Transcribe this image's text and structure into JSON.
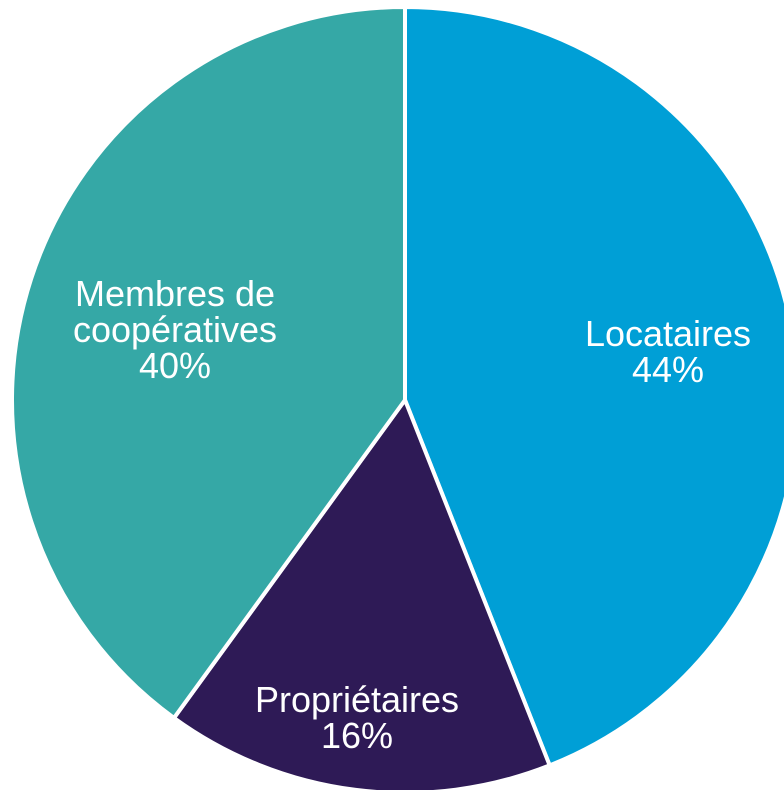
{
  "chart_data": {
    "type": "pie",
    "categories": [
      "Locataires",
      "Propriétaires",
      "Membres de coopératives"
    ],
    "values": [
      44,
      16,
      40
    ],
    "value_labels": [
      "44%",
      "16%",
      "40%"
    ],
    "colors": [
      "#009fd6",
      "#2e1a56",
      "#35a8a6"
    ]
  }
}
